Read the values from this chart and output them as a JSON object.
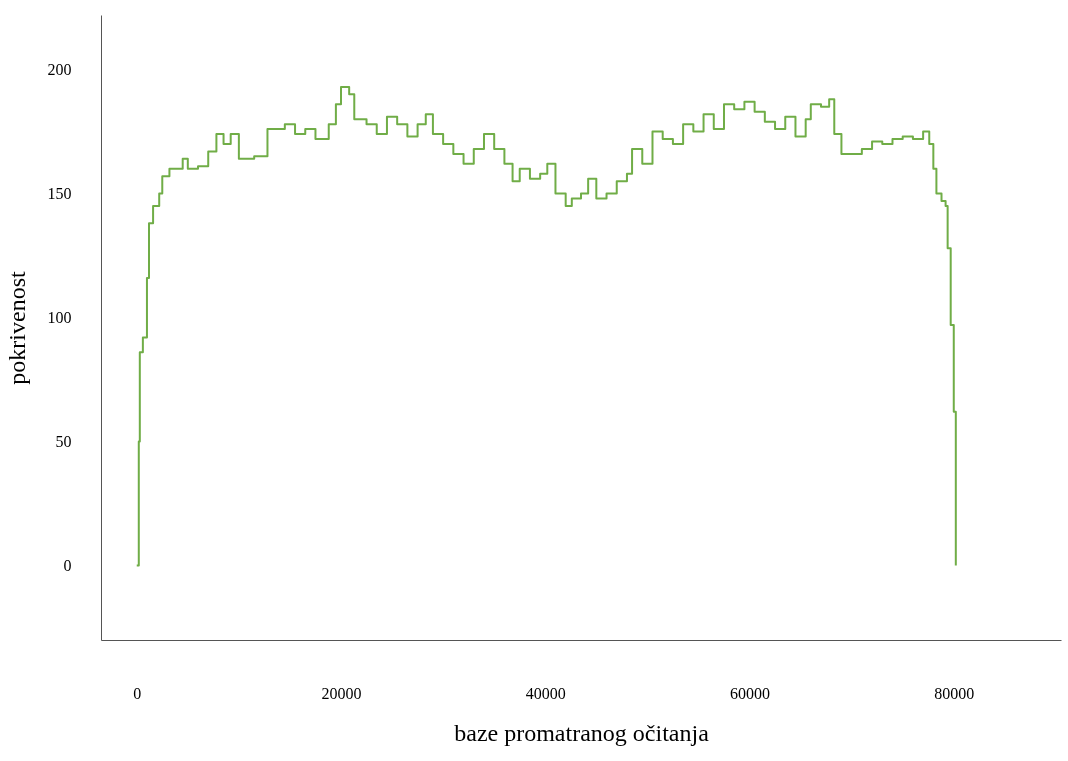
{
  "chart_data": {
    "type": "step",
    "xlabel": "baze promatranog očitanja",
    "ylabel": "pokrivenost",
    "xlim": [
      -3500,
      90500
    ],
    "ylim": [
      -30,
      222
    ],
    "xticks": [
      0,
      20000,
      40000,
      60000,
      80000
    ],
    "yticks": [
      0,
      50,
      100,
      150,
      200
    ],
    "grid": false,
    "line_style": "solid",
    "series": [
      {
        "color": "#70ad47",
        "x": [
          0,
          200,
          300,
          600,
          1000,
          1200,
          1600,
          2200,
          2500,
          3200,
          4000,
          4500,
          5000,
          6000,
          7000,
          7800,
          8500,
          9200,
          10000,
          11500,
          12800,
          13500,
          14500,
          15500,
          16500,
          17500,
          18800,
          19500,
          20000,
          20800,
          21300,
          22500,
          23500,
          24500,
          25500,
          26500,
          27500,
          28300,
          29000,
          30000,
          31000,
          32000,
          33000,
          34000,
          35000,
          36000,
          36800,
          37500,
          38500,
          39500,
          40200,
          41000,
          42000,
          42600,
          43500,
          44200,
          45000,
          46000,
          47000,
          48000,
          48500,
          49500,
          50500,
          51500,
          52500,
          53500,
          54500,
          55500,
          56500,
          57500,
          58500,
          59500,
          60500,
          61500,
          62500,
          63500,
          64500,
          65500,
          66000,
          67000,
          67800,
          68300,
          69000,
          70000,
          71000,
          72000,
          73000,
          74000,
          75000,
          76000,
          77000,
          77600,
          78000,
          78300,
          78800,
          79200,
          79400,
          79700,
          80000,
          80200
        ],
        "values": [
          0,
          50,
          86,
          92,
          116,
          138,
          145,
          150,
          157,
          160,
          160,
          164,
          160,
          161,
          167,
          174,
          170,
          174,
          164,
          165,
          176,
          176,
          178,
          174,
          176,
          172,
          178,
          186,
          193,
          190,
          180,
          178,
          174,
          181,
          178,
          173,
          178,
          182,
          174,
          170,
          166,
          162,
          168,
          174,
          168,
          162,
          155,
          160,
          156,
          158,
          162,
          150,
          145,
          148,
          150,
          156,
          148,
          150,
          155,
          158,
          168,
          162,
          175,
          172,
          170,
          178,
          175,
          182,
          176,
          186,
          184,
          187,
          183,
          179,
          176,
          181,
          173,
          180,
          186,
          185,
          188,
          174,
          166,
          166,
          168,
          171,
          170,
          172,
          173,
          172,
          175,
          170,
          160,
          150,
          147,
          145,
          128,
          97,
          62,
          0
        ]
      }
    ]
  }
}
